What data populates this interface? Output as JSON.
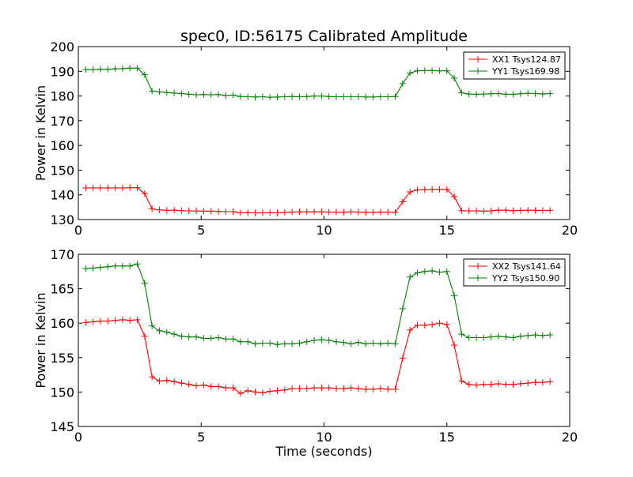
{
  "chart_data": [
    {
      "type": "line",
      "title": "spec0, ID:56175 Calibrated Amplitude",
      "xlabel": "",
      "ylabel": "Power in Kelvin",
      "xlim": [
        0,
        20
      ],
      "ylim": [
        130,
        200
      ],
      "xticks": [
        0,
        5,
        10,
        15,
        20
      ],
      "yticks": [
        130,
        140,
        150,
        160,
        170,
        180,
        190,
        200
      ],
      "legend_position": "top-right",
      "x": [
        0.3,
        0.6,
        0.9,
        1.2,
        1.5,
        1.8,
        2.1,
        2.4,
        2.7,
        3.0,
        3.3,
        3.6,
        3.9,
        4.2,
        4.5,
        4.8,
        5.1,
        5.4,
        5.7,
        6.0,
        6.3,
        6.6,
        6.9,
        7.2,
        7.5,
        7.8,
        8.1,
        8.4,
        8.7,
        9.0,
        9.3,
        9.6,
        9.9,
        10.2,
        10.5,
        10.8,
        11.1,
        11.4,
        11.7,
        12.0,
        12.3,
        12.6,
        12.9,
        13.2,
        13.5,
        13.8,
        14.1,
        14.4,
        14.7,
        15.0,
        15.3,
        15.6,
        15.9,
        16.2,
        16.5,
        16.8,
        17.1,
        17.4,
        17.7,
        18.0,
        18.3,
        18.6,
        18.9,
        19.2
      ],
      "series": [
        {
          "name": "XX1 Tsys124.87",
          "color": "#ff0000",
          "values": [
            142.8,
            142.8,
            142.8,
            142.8,
            142.8,
            142.8,
            142.9,
            142.9,
            140.5,
            134.3,
            133.9,
            133.7,
            133.8,
            133.6,
            133.5,
            133.5,
            133.4,
            133.4,
            133.3,
            133.2,
            133.2,
            132.7,
            132.8,
            132.7,
            132.7,
            132.8,
            132.7,
            132.9,
            133.0,
            133.1,
            133.1,
            133.1,
            133.1,
            133.0,
            133.0,
            132.9,
            133.1,
            133.0,
            132.9,
            132.9,
            133.0,
            133.0,
            132.9,
            137.2,
            141.2,
            142.0,
            142.1,
            142.2,
            142.2,
            142.2,
            139.3,
            133.6,
            133.5,
            133.5,
            133.4,
            133.5,
            133.8,
            133.8,
            133.6,
            133.7,
            133.8,
            133.7,
            133.7,
            133.7
          ]
        },
        {
          "name": "YY1 Tsys169.98",
          "color": "#008000",
          "values": [
            190.7,
            190.7,
            190.8,
            190.8,
            191.0,
            191.1,
            191.3,
            191.3,
            188.6,
            182.0,
            181.7,
            181.4,
            181.2,
            181.0,
            180.7,
            180.5,
            180.6,
            180.5,
            180.6,
            180.2,
            180.4,
            179.8,
            179.7,
            179.6,
            179.7,
            179.5,
            179.6,
            179.7,
            179.8,
            179.7,
            179.8,
            180.0,
            180.0,
            179.8,
            179.7,
            179.7,
            179.7,
            179.7,
            179.6,
            179.6,
            179.7,
            179.7,
            179.8,
            185.0,
            189.3,
            190.2,
            190.3,
            190.3,
            190.2,
            190.2,
            187.2,
            181.3,
            180.8,
            180.7,
            180.8,
            180.9,
            181.0,
            180.7,
            180.7,
            180.9,
            181.1,
            181.0,
            180.8,
            181.0
          ]
        }
      ]
    },
    {
      "type": "line",
      "title": "",
      "xlabel": "Time (seconds)",
      "ylabel": "Power in Kelvin",
      "xlim": [
        0,
        20
      ],
      "ylim": [
        145,
        170
      ],
      "xticks": [
        0,
        5,
        10,
        15,
        20
      ],
      "yticks": [
        145,
        150,
        155,
        160,
        165,
        170
      ],
      "legend_position": "top-right",
      "x": [
        0.3,
        0.6,
        0.9,
        1.2,
        1.5,
        1.8,
        2.1,
        2.4,
        2.7,
        3.0,
        3.3,
        3.6,
        3.9,
        4.2,
        4.5,
        4.8,
        5.1,
        5.4,
        5.7,
        6.0,
        6.3,
        6.6,
        6.9,
        7.2,
        7.5,
        7.8,
        8.1,
        8.4,
        8.7,
        9.0,
        9.3,
        9.6,
        9.9,
        10.2,
        10.5,
        10.8,
        11.1,
        11.4,
        11.7,
        12.0,
        12.3,
        12.6,
        12.9,
        13.2,
        13.5,
        13.8,
        14.1,
        14.4,
        14.7,
        15.0,
        15.3,
        15.6,
        15.9,
        16.2,
        16.5,
        16.8,
        17.1,
        17.4,
        17.7,
        18.0,
        18.3,
        18.6,
        18.9,
        19.2
      ],
      "series": [
        {
          "name": "XX2 Tsys141.64",
          "color": "#ff0000",
          "values": [
            160.1,
            160.2,
            160.3,
            160.3,
            160.4,
            160.5,
            160.4,
            160.5,
            158.1,
            152.2,
            151.6,
            151.7,
            151.5,
            151.3,
            151.1,
            150.9,
            151.0,
            150.8,
            150.8,
            150.6,
            150.6,
            149.8,
            150.2,
            150.0,
            149.9,
            150.1,
            150.2,
            150.3,
            150.5,
            150.5,
            150.5,
            150.6,
            150.6,
            150.6,
            150.5,
            150.5,
            150.6,
            150.5,
            150.4,
            150.4,
            150.5,
            150.4,
            150.4,
            154.9,
            159.0,
            159.7,
            159.7,
            159.8,
            160.0,
            159.8,
            156.8,
            151.6,
            151.1,
            151.0,
            151.1,
            151.1,
            151.2,
            151.1,
            151.1,
            151.2,
            151.3,
            151.4,
            151.4,
            151.5
          ]
        },
        {
          "name": "YY2 Tsys150.90",
          "color": "#008000",
          "values": [
            167.9,
            168.0,
            168.1,
            168.2,
            168.3,
            168.3,
            168.3,
            168.6,
            165.8,
            159.6,
            158.9,
            158.7,
            158.4,
            158.1,
            158.0,
            158.0,
            157.8,
            157.8,
            157.9,
            157.7,
            157.7,
            157.3,
            157.3,
            157.0,
            157.1,
            157.1,
            156.9,
            157.0,
            157.0,
            157.1,
            157.3,
            157.5,
            157.6,
            157.5,
            157.3,
            157.2,
            157.0,
            157.2,
            157.0,
            157.1,
            157.0,
            157.1,
            157.0,
            162.1,
            166.7,
            167.3,
            167.5,
            167.6,
            167.4,
            167.5,
            164.0,
            158.4,
            157.9,
            157.9,
            157.9,
            158.0,
            158.1,
            158.0,
            157.9,
            158.1,
            158.2,
            158.3,
            158.2,
            158.3
          ]
        }
      ]
    }
  ]
}
